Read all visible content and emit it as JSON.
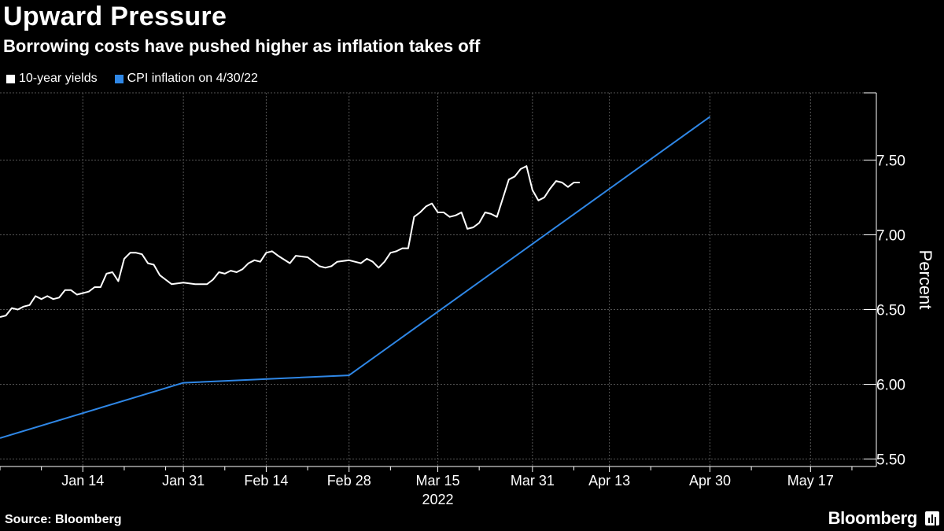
{
  "title": "Upward Pressure",
  "subtitle": "Borrowing costs have pushed higher as inflation takes off",
  "source": "Source: Bloomberg",
  "brand": "Bloomberg",
  "colors": {
    "background": "#000000",
    "yields": "#ffffff",
    "cpi": "#2f87e6",
    "grid": "#555555"
  },
  "chart_data": {
    "type": "line",
    "title": "Upward Pressure",
    "subtitle": "Borrowing costs have pushed higher as inflation takes off",
    "ylabel": "Percent",
    "xlabel": "2022",
    "ylim": [
      5.45,
      7.95
    ],
    "yticks": [
      5.5,
      6.0,
      6.5,
      7.0,
      7.5
    ],
    "ytick_labels": [
      "5.50",
      "6.00",
      "6.50",
      "7.00",
      "7.50"
    ],
    "xlim": [
      "2021-12-31",
      "2022-05-26"
    ],
    "xticks": [
      {
        "date": "2022-01-14",
        "label": "Jan 14"
      },
      {
        "date": "2022-01-31",
        "label": "Jan 31"
      },
      {
        "date": "2022-02-14",
        "label": "Feb 14"
      },
      {
        "date": "2022-02-28",
        "label": "Feb 28"
      },
      {
        "date": "2022-03-15",
        "label": "Mar 15"
      },
      {
        "date": "2022-03-31",
        "label": "Mar 31"
      },
      {
        "date": "2022-04-13",
        "label": "Apr 13"
      },
      {
        "date": "2022-04-30",
        "label": "Apr 30"
      },
      {
        "date": "2022-05-17",
        "label": "May 17"
      }
    ],
    "minor_ticks": [
      "2021-12-31",
      "2022-01-07",
      "2022-01-21",
      "2022-01-28",
      "2022-02-07",
      "2022-02-21",
      "2022-03-07",
      "2022-03-22",
      "2022-04-07",
      "2022-04-20",
      "2022-05-07",
      "2022-05-24"
    ],
    "grid": true,
    "legend": "top-left",
    "series": [
      {
        "name": "10-year yields",
        "color": "#ffffff",
        "points": [
          [
            "2021-12-31",
            6.45
          ],
          [
            "2022-01-01",
            6.46
          ],
          [
            "2022-01-02",
            6.51
          ],
          [
            "2022-01-03",
            6.5
          ],
          [
            "2022-01-04",
            6.52
          ],
          [
            "2022-01-05",
            6.53
          ],
          [
            "2022-01-06",
            6.59
          ],
          [
            "2022-01-07",
            6.57
          ],
          [
            "2022-01-08",
            6.59
          ],
          [
            "2022-01-09",
            6.57
          ],
          [
            "2022-01-10",
            6.58
          ],
          [
            "2022-01-11",
            6.63
          ],
          [
            "2022-01-12",
            6.63
          ],
          [
            "2022-01-13",
            6.6
          ],
          [
            "2022-01-14",
            6.61
          ],
          [
            "2022-01-15",
            6.62
          ],
          [
            "2022-01-16",
            6.65
          ],
          [
            "2022-01-17",
            6.65
          ],
          [
            "2022-01-18",
            6.74
          ],
          [
            "2022-01-19",
            6.75
          ],
          [
            "2022-01-20",
            6.69
          ],
          [
            "2022-01-21",
            6.84
          ],
          [
            "2022-01-22",
            6.88
          ],
          [
            "2022-01-23",
            6.88
          ],
          [
            "2022-01-24",
            6.87
          ],
          [
            "2022-01-25",
            6.81
          ],
          [
            "2022-01-26",
            6.8
          ],
          [
            "2022-01-27",
            6.73
          ],
          [
            "2022-01-28",
            6.7
          ],
          [
            "2022-01-29",
            6.67
          ],
          [
            "2022-01-31",
            6.68
          ],
          [
            "2022-02-02",
            6.67
          ],
          [
            "2022-02-04",
            6.67
          ],
          [
            "2022-02-05",
            6.7
          ],
          [
            "2022-02-06",
            6.75
          ],
          [
            "2022-02-07",
            6.74
          ],
          [
            "2022-02-08",
            6.76
          ],
          [
            "2022-02-09",
            6.75
          ],
          [
            "2022-02-10",
            6.77
          ],
          [
            "2022-02-11",
            6.81
          ],
          [
            "2022-02-12",
            6.83
          ],
          [
            "2022-02-13",
            6.82
          ],
          [
            "2022-02-14",
            6.88
          ],
          [
            "2022-02-15",
            6.89
          ],
          [
            "2022-02-16",
            6.86
          ],
          [
            "2022-02-18",
            6.81
          ],
          [
            "2022-02-19",
            6.86
          ],
          [
            "2022-02-21",
            6.85
          ],
          [
            "2022-02-23",
            6.79
          ],
          [
            "2022-02-24",
            6.78
          ],
          [
            "2022-02-25",
            6.79
          ],
          [
            "2022-02-26",
            6.82
          ],
          [
            "2022-02-28",
            6.83
          ],
          [
            "2022-03-01",
            6.82
          ],
          [
            "2022-03-02",
            6.81
          ],
          [
            "2022-03-03",
            6.84
          ],
          [
            "2022-03-04",
            6.82
          ],
          [
            "2022-03-05",
            6.78
          ],
          [
            "2022-03-06",
            6.82
          ],
          [
            "2022-03-07",
            6.88
          ],
          [
            "2022-03-08",
            6.89
          ],
          [
            "2022-03-09",
            6.91
          ],
          [
            "2022-03-10",
            6.91
          ],
          [
            "2022-03-11",
            7.12
          ],
          [
            "2022-03-12",
            7.15
          ],
          [
            "2022-03-13",
            7.19
          ],
          [
            "2022-03-14",
            7.21
          ],
          [
            "2022-03-15",
            7.15
          ],
          [
            "2022-03-16",
            7.15
          ],
          [
            "2022-03-17",
            7.12
          ],
          [
            "2022-03-18",
            7.13
          ],
          [
            "2022-03-19",
            7.15
          ],
          [
            "2022-03-20",
            7.04
          ],
          [
            "2022-03-21",
            7.05
          ],
          [
            "2022-03-22",
            7.08
          ],
          [
            "2022-03-23",
            7.15
          ],
          [
            "2022-03-24",
            7.14
          ],
          [
            "2022-03-25",
            7.12
          ],
          [
            "2022-03-27",
            7.37
          ],
          [
            "2022-03-28",
            7.39
          ],
          [
            "2022-03-29",
            7.44
          ],
          [
            "2022-03-30",
            7.46
          ],
          [
            "2022-03-31",
            7.3
          ],
          [
            "2022-04-01",
            7.23
          ],
          [
            "2022-04-02",
            7.25
          ],
          [
            "2022-04-03",
            7.31
          ],
          [
            "2022-04-04",
            7.36
          ],
          [
            "2022-04-05",
            7.35
          ],
          [
            "2022-04-06",
            7.32
          ],
          [
            "2022-04-07",
            7.35
          ],
          [
            "2022-04-08",
            7.35
          ]
        ]
      },
      {
        "name": "CPI inflation on 4/30/22",
        "color": "#2f87e6",
        "points": [
          [
            "2021-12-31",
            5.64
          ],
          [
            "2022-01-31",
            6.01
          ],
          [
            "2022-02-28",
            6.06
          ],
          [
            "2022-04-30",
            7.79
          ]
        ]
      }
    ]
  }
}
